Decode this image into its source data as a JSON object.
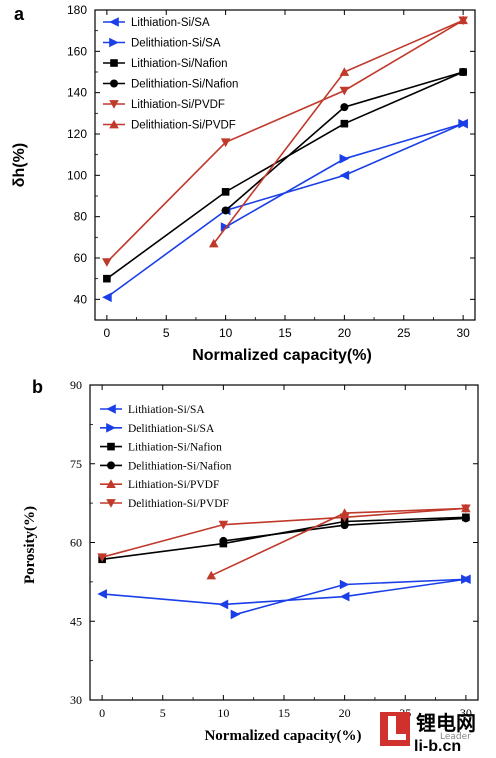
{
  "chart_data": [
    {
      "panel": "a",
      "type": "line",
      "xlabel": "Normalized capacity(%)",
      "ylabel": "δh(%)",
      "xlim": [
        -1,
        31
      ],
      "ylim": [
        30,
        180
      ],
      "xticks": [
        0,
        5,
        10,
        15,
        20,
        25,
        30
      ],
      "yticks": [
        40,
        60,
        80,
        100,
        120,
        140,
        160,
        180
      ],
      "legend_position": "top-left",
      "series": [
        {
          "name": "Lithiation-Si/SA",
          "color": "#1a3fe8",
          "marker": "tri-left",
          "x": [
            0,
            10,
            20,
            30
          ],
          "y": [
            41,
            83,
            100,
            125
          ]
        },
        {
          "name": "Delithiation-Si/SA",
          "color": "#1a3fe8",
          "marker": "tri-right",
          "x": [
            10,
            20,
            30
          ],
          "y": [
            75,
            108,
            125
          ]
        },
        {
          "name": "Lithiation-Si/Nafion",
          "color": "#000000",
          "marker": "square",
          "x": [
            0,
            10,
            20,
            30
          ],
          "y": [
            50,
            92,
            125,
            150
          ]
        },
        {
          "name": "Delithiation-Si/Nafion",
          "color": "#000000",
          "marker": "circle",
          "x": [
            10,
            20,
            30
          ],
          "y": [
            83,
            133,
            150
          ]
        },
        {
          "name": "Lithiation-Si/PVDF",
          "color": "#c0392b",
          "marker": "tri-down",
          "x": [
            0,
            10,
            20,
            30
          ],
          "y": [
            58,
            116,
            141,
            175
          ]
        },
        {
          "name": "Delithiation-Si/PVDF",
          "color": "#c0392b",
          "marker": "tri-up",
          "x": [
            9,
            20,
            30
          ],
          "y": [
            67,
            150,
            175
          ]
        }
      ]
    },
    {
      "panel": "b",
      "type": "line",
      "xlabel": "Normalized capacity(%)",
      "ylabel": "Porosity(%)",
      "xlim": [
        -1,
        31
      ],
      "ylim": [
        30,
        90
      ],
      "xticks": [
        0,
        5,
        10,
        15,
        20,
        25,
        30
      ],
      "yticks": [
        30,
        45,
        60,
        75,
        90
      ],
      "legend_position": "top-left",
      "series": [
        {
          "name": "Lithiation-Si/SA",
          "color": "#1a3fe8",
          "marker": "tri-left",
          "x": [
            0,
            10,
            20,
            30
          ],
          "y": [
            50.2,
            48.2,
            49.7,
            53
          ]
        },
        {
          "name": "Delithiation-Si/SA",
          "color": "#1a3fe8",
          "marker": "tri-right",
          "x": [
            11,
            20,
            30
          ],
          "y": [
            46.3,
            52,
            53
          ]
        },
        {
          "name": "Lithiation-Si/Nafion",
          "color": "#000000",
          "marker": "square",
          "x": [
            0,
            10,
            20,
            30
          ],
          "y": [
            56.8,
            59.8,
            64,
            64.8
          ]
        },
        {
          "name": "Delithiation-Si/Nafion",
          "color": "#000000",
          "marker": "circle",
          "x": [
            10,
            20,
            30
          ],
          "y": [
            60.3,
            63.3,
            64.6
          ]
        },
        {
          "name": "Lithiation-Si/PVDF",
          "color": "#c0392b",
          "marker": "tri-up",
          "x": [
            9,
            20,
            30
          ],
          "y": [
            53.7,
            65.6,
            66.5
          ]
        },
        {
          "name": "Delithiation-Si/PVDF",
          "color": "#c0392b",
          "marker": "tri-down",
          "x": [
            0,
            10,
            20,
            30
          ],
          "y": [
            57.2,
            63.4,
            64.8,
            66.5
          ]
        }
      ]
    }
  ],
  "watermark": {
    "brand_cn": "锂电网",
    "url": "li-b.cn",
    "small": "Leader",
    "color": "#d0312d"
  }
}
